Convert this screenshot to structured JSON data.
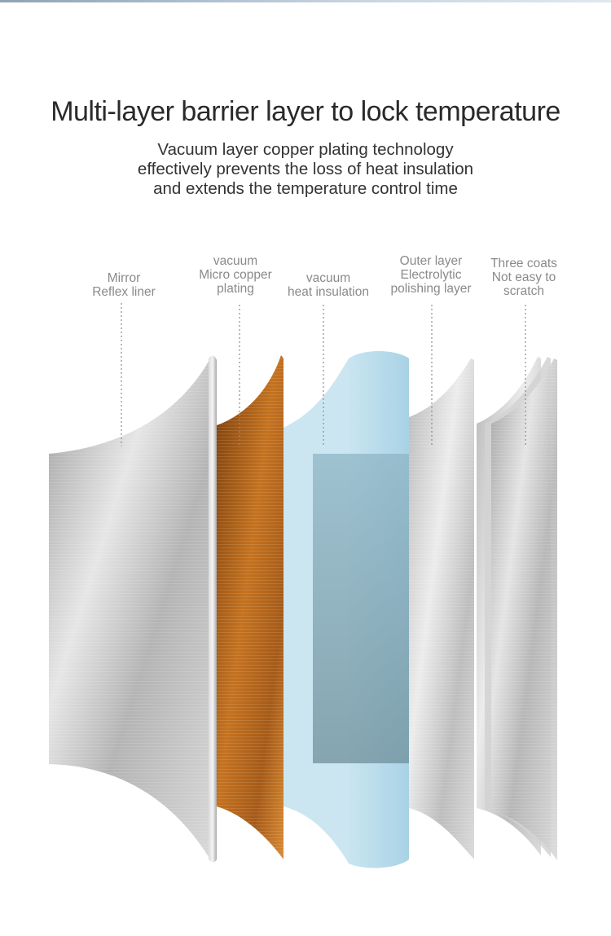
{
  "title": "Multi-layer barrier layer to lock temperature",
  "subtitle": {
    "line1": "Vacuum layer copper plating technology",
    "line2": "effectively prevents the loss of heat insulation",
    "line3": "and extends the temperature control time"
  },
  "labels": {
    "mirror": [
      "Mirror",
      "Reflex liner"
    ],
    "copper": [
      "vacuum",
      "Micro copper",
      "plating"
    ],
    "vacuum": [
      "vacuum",
      "heat insulation"
    ],
    "outer": [
      "Outer layer",
      "Electrolytic",
      "polishing layer"
    ],
    "coats": [
      "Three coats",
      "Not easy to",
      "scratch"
    ]
  },
  "colors": {
    "steel": "#c4c4c4",
    "copper": "#b5651d",
    "vacuum_blue": "#a8d8ec",
    "label_text": "#8a8a8a",
    "title_text": "#2a2a2a"
  }
}
